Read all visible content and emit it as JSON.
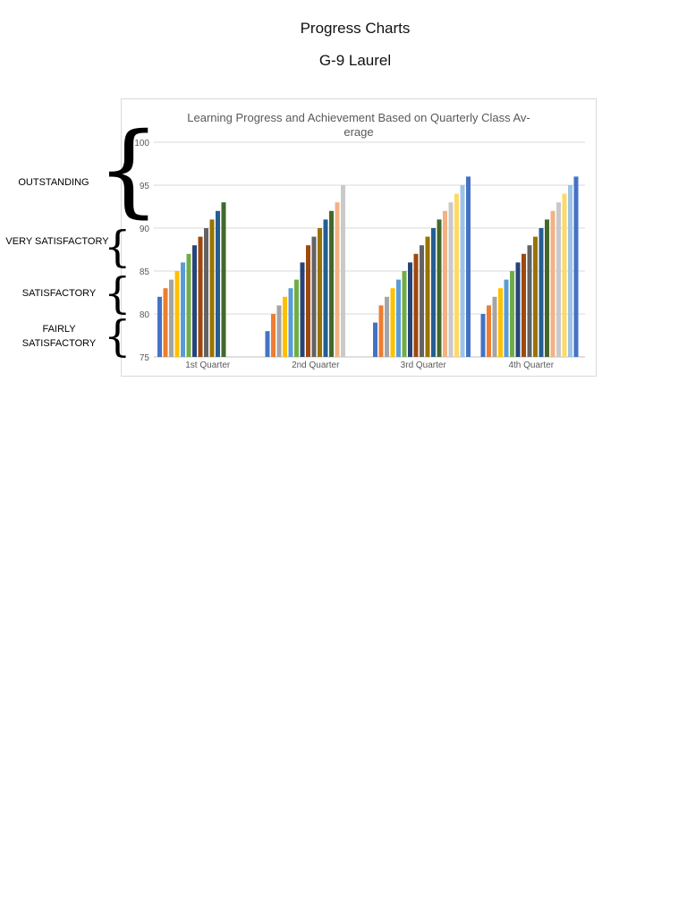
{
  "document": {
    "title": "Progress Charts",
    "subtitle": "G-9 Laurel"
  },
  "bands": [
    {
      "label": "OUTSTANDING",
      "from": 90,
      "to": 100
    },
    {
      "label": "VERY SATISFACTORY",
      "from": 85,
      "to": 90
    },
    {
      "label": "SATISFACTORY",
      "from": 80,
      "to": 85
    },
    {
      "label": "FAIRLY SATISFACTORY",
      "from": 75,
      "to": 80
    }
  ],
  "chart_data": {
    "type": "bar",
    "title": "Learning Progress and Achievement Based on Quarterly Class Av- erage",
    "xlabel": "",
    "ylabel": "",
    "ylim": [
      75,
      100
    ],
    "yticks": [
      75,
      80,
      85,
      90,
      95,
      100
    ],
    "grid": true,
    "legend": "none",
    "categories": [
      "1st Quarter",
      "2nd Quarter",
      "3rd Quarter",
      "4th Quarter"
    ],
    "colors": [
      "#4472c4",
      "#ed7d31",
      "#a5a5a5",
      "#ffc000",
      "#5b9bd5",
      "#70ad47",
      "#264478",
      "#9e480e",
      "#636363",
      "#997300",
      "#255e91",
      "#43682b",
      "#f4b183",
      "#c9c9c9",
      "#ffd966",
      "#9dc3e6"
    ],
    "groups": [
      [
        82,
        83,
        84,
        85,
        86,
        87,
        88,
        89,
        90,
        91,
        92,
        93
      ],
      [
        78,
        80,
        81,
        82,
        83,
        84,
        86,
        88,
        89,
        90,
        91,
        92,
        93,
        95
      ],
      [
        79,
        81,
        82,
        83,
        84,
        85,
        86,
        87,
        88,
        89,
        90,
        91,
        92,
        93,
        94,
        95,
        96
      ],
      [
        80,
        81,
        82,
        83,
        84,
        85,
        86,
        87,
        88,
        89,
        90,
        91,
        92,
        93,
        94,
        95,
        96
      ]
    ]
  }
}
